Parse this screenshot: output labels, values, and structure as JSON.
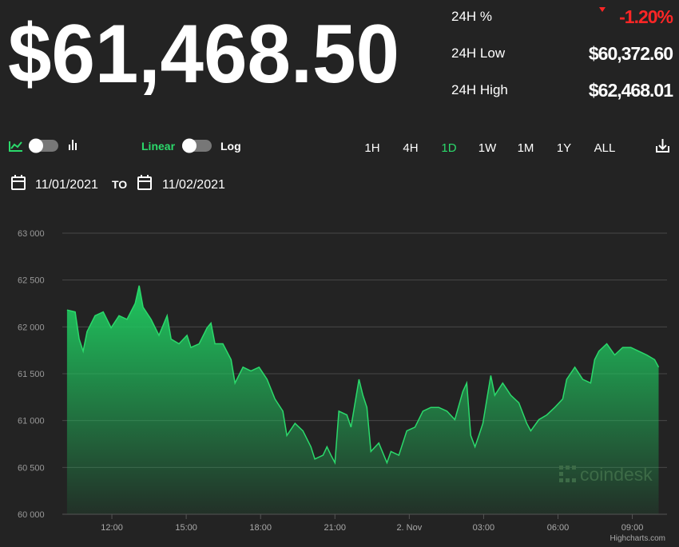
{
  "header": {
    "price": "$61,468.50",
    "stats": [
      {
        "label": "24H %",
        "value": "-1.20%",
        "color": "#ff2626"
      },
      {
        "label": "24H Low",
        "value": "$60,372.60",
        "color": "#ffffff"
      },
      {
        "label": "24H High",
        "value": "$62,468.01",
        "color": "#ffffff"
      }
    ]
  },
  "controls": {
    "scale_options": [
      "Linear",
      "Log"
    ],
    "ranges": [
      "1H",
      "4H",
      "1D",
      "1W",
      "1M",
      "1Y",
      "ALL"
    ],
    "active_range": "1D",
    "date_from": "11/01/2021",
    "date_separator": "TO",
    "date_to": "11/02/2021"
  },
  "chart_data": {
    "type": "area",
    "color": "#2bd96b",
    "grid": true,
    "x": [
      10.19,
      10.52,
      10.68,
      10.84,
      11.0,
      11.32,
      11.65,
      11.97,
      12.29,
      12.61,
      12.94,
      13.1,
      13.26,
      13.58,
      13.9,
      14.23,
      14.39,
      14.71,
      15.03,
      15.19,
      15.52,
      15.84,
      16.0,
      16.16,
      16.48,
      16.81,
      16.97,
      17.29,
      17.61,
      17.94,
      18.26,
      18.58,
      18.9,
      19.06,
      19.39,
      19.71,
      20.03,
      20.19,
      20.52,
      20.68,
      20.84,
      21.0,
      21.16,
      21.48,
      21.65,
      21.97,
      22.13,
      22.29,
      22.45,
      22.77,
      23.1,
      23.26,
      23.58,
      23.9,
      24.23,
      24.55,
      24.87,
      25.19,
      25.52,
      25.84,
      26.16,
      26.32,
      26.48,
      26.65,
      26.81,
      26.97,
      27.13,
      27.29,
      27.45,
      27.77,
      28.1,
      28.42,
      28.74,
      28.9,
      29.23,
      29.55,
      29.87,
      30.19,
      30.35,
      30.68,
      31.0,
      31.32,
      31.48,
      31.65,
      31.97,
      32.29,
      32.61,
      32.94,
      33.26,
      33.58,
      33.9,
      34.06
    ],
    "values": [
      62180,
      62160,
      61870,
      61740,
      61950,
      62120,
      62160,
      61990,
      62120,
      62080,
      62250,
      62440,
      62210,
      62080,
      61910,
      62120,
      61870,
      61820,
      61910,
      61780,
      61820,
      61990,
      62040,
      61820,
      61820,
      61650,
      61400,
      61570,
      61530,
      61570,
      61440,
      61230,
      61100,
      60840,
      60970,
      60890,
      60720,
      60590,
      60630,
      60720,
      60630,
      60550,
      61100,
      61060,
      60930,
      61440,
      61270,
      61140,
      60670,
      60760,
      60550,
      60670,
      60630,
      60890,
      60930,
      61100,
      61140,
      61140,
      61100,
      61010,
      61310,
      61400,
      60840,
      60720,
      60840,
      60970,
      61230,
      61480,
      61270,
      61400,
      61270,
      61190,
      60970,
      60890,
      61010,
      61060,
      61140,
      61230,
      61440,
      61570,
      61440,
      61400,
      61650,
      61740,
      61820,
      61700,
      61780,
      61780,
      61740,
      61700,
      61650,
      61570
    ],
    "xlim": [
      10,
      34.4
    ],
    "xticks": [
      {
        "value": 12,
        "label": "12:00"
      },
      {
        "value": 15,
        "label": "15:00"
      },
      {
        "value": 18,
        "label": "18:00"
      },
      {
        "value": 21,
        "label": "21:00"
      },
      {
        "value": 24,
        "label": "2. Nov"
      },
      {
        "value": 27,
        "label": "03:00"
      },
      {
        "value": 30,
        "label": "06:00"
      },
      {
        "value": 33,
        "label": "09:00"
      }
    ],
    "ylim": [
      60000,
      63000
    ],
    "yticks": [
      {
        "value": 60000,
        "label": "60 000"
      },
      {
        "value": 60500,
        "label": "60 500"
      },
      {
        "value": 61000,
        "label": "61 000"
      },
      {
        "value": 61500,
        "label": "61 500"
      },
      {
        "value": 62000,
        "label": "62 000"
      },
      {
        "value": 62500,
        "label": "62 500"
      },
      {
        "value": 63000,
        "label": "63 000"
      }
    ],
    "watermark": "coindesk"
  },
  "credit": "Highcharts.com"
}
